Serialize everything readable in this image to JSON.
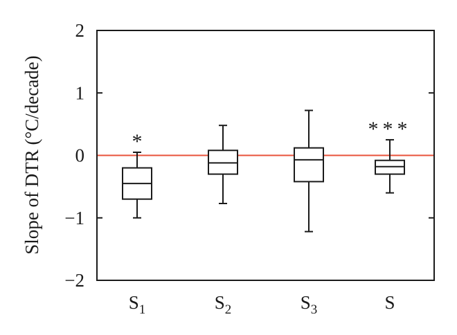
{
  "chart_data": {
    "type": "boxplot",
    "title": "",
    "xlabel": "",
    "ylabel": "Slope of DTR (°C/decade)",
    "ylim": [
      -2,
      2
    ],
    "yticks": [
      {
        "value": 2,
        "label": "2"
      },
      {
        "value": 1,
        "label": "1"
      },
      {
        "value": 0,
        "label": "0"
      },
      {
        "value": -1,
        "label": "−1"
      },
      {
        "value": -2,
        "label": "−2"
      }
    ],
    "categories": [
      {
        "base": "S",
        "sub": "1"
      },
      {
        "base": "S",
        "sub": "2"
      },
      {
        "base": "S",
        "sub": "3"
      },
      {
        "base": "S",
        "sub": ""
      }
    ],
    "boxes": [
      {
        "min": -1.0,
        "q1": -0.7,
        "median": -0.45,
        "q3": -0.2,
        "max": 0.05,
        "significance": "*"
      },
      {
        "min": -0.77,
        "q1": -0.3,
        "median": -0.12,
        "q3": 0.08,
        "max": 0.48,
        "significance": ""
      },
      {
        "min": -1.22,
        "q1": -0.42,
        "median": -0.07,
        "q3": 0.12,
        "max": 0.72,
        "significance": ""
      },
      {
        "min": -0.6,
        "q1": -0.3,
        "median": -0.18,
        "q3": -0.08,
        "max": 0.25,
        "significance": "***"
      }
    ],
    "reference_line": {
      "value": 0,
      "color": "#e8513a"
    },
    "box_color": "#1a1a1a",
    "grid": false,
    "legend": "none"
  }
}
